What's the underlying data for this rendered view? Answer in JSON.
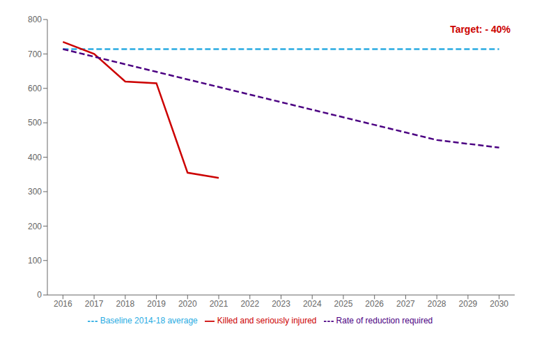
{
  "chart_data": {
    "type": "line",
    "series": [
      {
        "name": "Baseline 2014-18 average",
        "color": "#29ABE2",
        "line_style": "dashed",
        "x": [
          2016,
          2030
        ],
        "values": [
          714,
          714
        ]
      },
      {
        "name": "Killed and seriously injured",
        "color": "#CC0000",
        "line_style": "solid",
        "x": [
          2016,
          2017,
          2018,
          2019,
          2020,
          2021
        ],
        "values": [
          735,
          700,
          620,
          615,
          355,
          340
        ]
      },
      {
        "name": "Rate of reduction required",
        "color": "#4B0082",
        "line_style": "dashed",
        "x": [
          2016,
          2017,
          2018,
          2019,
          2020,
          2021,
          2022,
          2023,
          2024,
          2025,
          2026,
          2027,
          2028,
          2029,
          2030
        ],
        "values": [
          714,
          692,
          670,
          648,
          626,
          604,
          582,
          560,
          538,
          516,
          494,
          472,
          450,
          439,
          428
        ]
      }
    ],
    "annotations": [
      {
        "text": "Target: - 40%",
        "color": "#CC0000"
      }
    ],
    "xlim": [
      2015.5,
      2030.5
    ],
    "xticks": [
      2016,
      2017,
      2018,
      2019,
      2020,
      2021,
      2022,
      2023,
      2024,
      2025,
      2026,
      2027,
      2028,
      2029,
      2030
    ],
    "ylim": [
      0,
      800
    ],
    "yticks": [
      0,
      100,
      200,
      300,
      400,
      500,
      600,
      700,
      800
    ],
    "grid": false
  }
}
